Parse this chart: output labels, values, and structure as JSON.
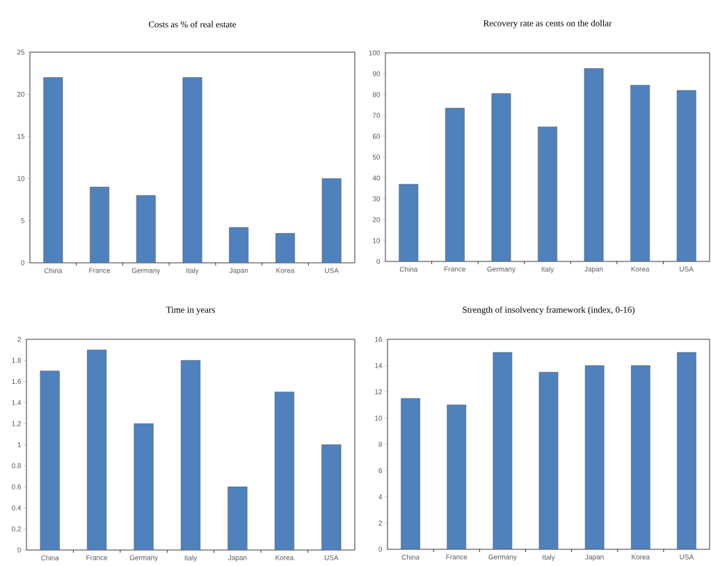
{
  "chart_data": [
    {
      "type": "bar",
      "title": "Costs as % of real estate",
      "categories": [
        "China",
        "France",
        "Germany",
        "Italy",
        "Japan",
        "Korea",
        "USA"
      ],
      "values": [
        22,
        9,
        8,
        22,
        4.2,
        3.5,
        10
      ],
      "color": "#4f81bd",
      "ylim": [
        0,
        25
      ],
      "yticks": [
        0,
        5,
        10,
        15,
        20,
        25
      ]
    },
    {
      "type": "bar",
      "title": "Recovery rate as cents on the dollar",
      "categories": [
        "China",
        "France",
        "Germany",
        "Italy",
        "Japan",
        "Korea",
        "USA"
      ],
      "values": [
        37,
        73.5,
        80.5,
        64.5,
        92.5,
        84.5,
        82
      ],
      "color": "#4f81bd",
      "ylim": [
        0,
        100
      ],
      "yticks": [
        0,
        10,
        20,
        30,
        40,
        50,
        60,
        70,
        80,
        90,
        100
      ]
    },
    {
      "type": "bar",
      "title": "Time in years",
      "categories": [
        "China",
        "France",
        "Germany",
        "Italy",
        "Japan",
        "Korea",
        "USA"
      ],
      "values": [
        1.7,
        1.9,
        1.2,
        1.8,
        0.6,
        1.5,
        1.0
      ],
      "color": "#4f81bd",
      "ylim": [
        0,
        2
      ],
      "yticks": [
        0,
        0.2,
        0.4,
        0.6,
        0.8,
        1,
        1.2,
        1.4,
        1.6,
        1.8,
        2
      ]
    },
    {
      "type": "bar",
      "title": "Strength of insolvency framework (index, 0-16)",
      "categories": [
        "China",
        "France",
        "Germany",
        "Italy",
        "Japan",
        "Korea",
        "USA"
      ],
      "values": [
        11.5,
        11,
        15,
        13.5,
        14,
        14,
        15
      ],
      "color": "#4f81bd",
      "ylim": [
        0,
        16
      ],
      "yticks": [
        0,
        2,
        4,
        6,
        8,
        10,
        12,
        14,
        16
      ]
    }
  ]
}
